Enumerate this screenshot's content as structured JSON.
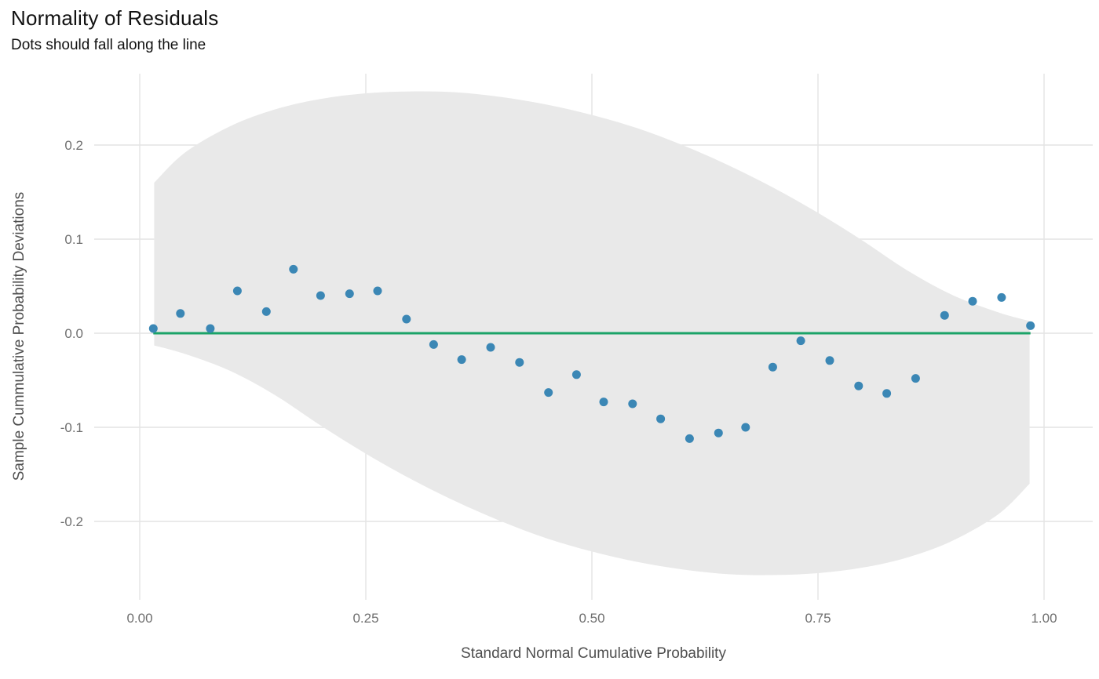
{
  "header": {
    "title": "Normality of Residuals",
    "subtitle": "Dots should fall along the line"
  },
  "chart_data": {
    "type": "scatter",
    "title": "Normality of Residuals",
    "subtitle": "Dots should fall along the line",
    "xlabel": "Standard Normal Cumulative Probability",
    "ylabel": "Sample Cummulative Probability Deviations",
    "xlim": [
      -0.05,
      1.05
    ],
    "ylim": [
      -0.283,
      0.276
    ],
    "grid": true,
    "legend": "none",
    "x_ticks": [
      0.0,
      0.25,
      0.5,
      0.75,
      1.0
    ],
    "x_tick_labels": [
      "0.00",
      "0.25",
      "0.50",
      "0.75",
      "1.00"
    ],
    "y_ticks": [
      -0.2,
      -0.1,
      0.0,
      0.1,
      0.2
    ],
    "y_tick_labels": [
      "-0.2",
      "-0.1",
      "0.0",
      "0.1",
      "0.2"
    ],
    "reference_line": {
      "y": 0.0,
      "x_start": 0.015,
      "x_end": 0.985,
      "color": "#1ba368",
      "width": 3
    },
    "point_color": "#3b87b5",
    "point_radius": 5.5,
    "grid_color": "#e4e4e4",
    "points": [
      [
        0.015,
        0.005
      ],
      [
        0.045,
        0.021
      ],
      [
        0.078,
        0.005
      ],
      [
        0.108,
        0.045
      ],
      [
        0.14,
        0.023
      ],
      [
        0.17,
        0.068
      ],
      [
        0.2,
        0.04
      ],
      [
        0.232,
        0.042
      ],
      [
        0.263,
        0.045
      ],
      [
        0.295,
        0.015
      ],
      [
        0.325,
        -0.012
      ],
      [
        0.356,
        -0.028
      ],
      [
        0.388,
        -0.015
      ],
      [
        0.42,
        -0.031
      ],
      [
        0.452,
        -0.063
      ],
      [
        0.483,
        -0.044
      ],
      [
        0.513,
        -0.073
      ],
      [
        0.545,
        -0.075
      ],
      [
        0.576,
        -0.091
      ],
      [
        0.608,
        -0.112
      ],
      [
        0.64,
        -0.106
      ],
      [
        0.67,
        -0.1
      ],
      [
        0.7,
        -0.036
      ],
      [
        0.731,
        -0.008
      ],
      [
        0.763,
        -0.029
      ],
      [
        0.795,
        -0.056
      ],
      [
        0.826,
        -0.064
      ],
      [
        0.858,
        -0.048
      ],
      [
        0.89,
        0.019
      ],
      [
        0.921,
        0.034
      ],
      [
        0.953,
        0.038
      ],
      [
        0.985,
        0.008
      ]
    ],
    "confidence_band": {
      "color": "#e9e9e9",
      "points": [
        {
          "x": 0.016,
          "top": 0.16,
          "bottom": -0.013
        },
        {
          "x": 0.05,
          "top": 0.192,
          "bottom": -0.022
        },
        {
          "x": 0.1,
          "top": 0.22,
          "bottom": -0.04
        },
        {
          "x": 0.15,
          "top": 0.238,
          "bottom": -0.066
        },
        {
          "x": 0.2,
          "top": 0.249,
          "bottom": -0.098
        },
        {
          "x": 0.25,
          "top": 0.255,
          "bottom": -0.128
        },
        {
          "x": 0.3,
          "top": 0.257,
          "bottom": -0.155
        },
        {
          "x": 0.35,
          "top": 0.256,
          "bottom": -0.179
        },
        {
          "x": 0.4,
          "top": 0.251,
          "bottom": -0.2
        },
        {
          "x": 0.45,
          "top": 0.243,
          "bottom": -0.218
        },
        {
          "x": 0.5,
          "top": 0.232,
          "bottom": -0.232
        },
        {
          "x": 0.55,
          "top": 0.218,
          "bottom": -0.243
        },
        {
          "x": 0.6,
          "top": 0.2,
          "bottom": -0.251
        },
        {
          "x": 0.65,
          "top": 0.179,
          "bottom": -0.256
        },
        {
          "x": 0.7,
          "top": 0.155,
          "bottom": -0.257
        },
        {
          "x": 0.75,
          "top": 0.128,
          "bottom": -0.255
        },
        {
          "x": 0.8,
          "top": 0.098,
          "bottom": -0.249
        },
        {
          "x": 0.85,
          "top": 0.066,
          "bottom": -0.238
        },
        {
          "x": 0.9,
          "top": 0.04,
          "bottom": -0.22
        },
        {
          "x": 0.95,
          "top": 0.022,
          "bottom": -0.192
        },
        {
          "x": 0.984,
          "top": 0.013,
          "bottom": -0.16
        }
      ]
    }
  }
}
